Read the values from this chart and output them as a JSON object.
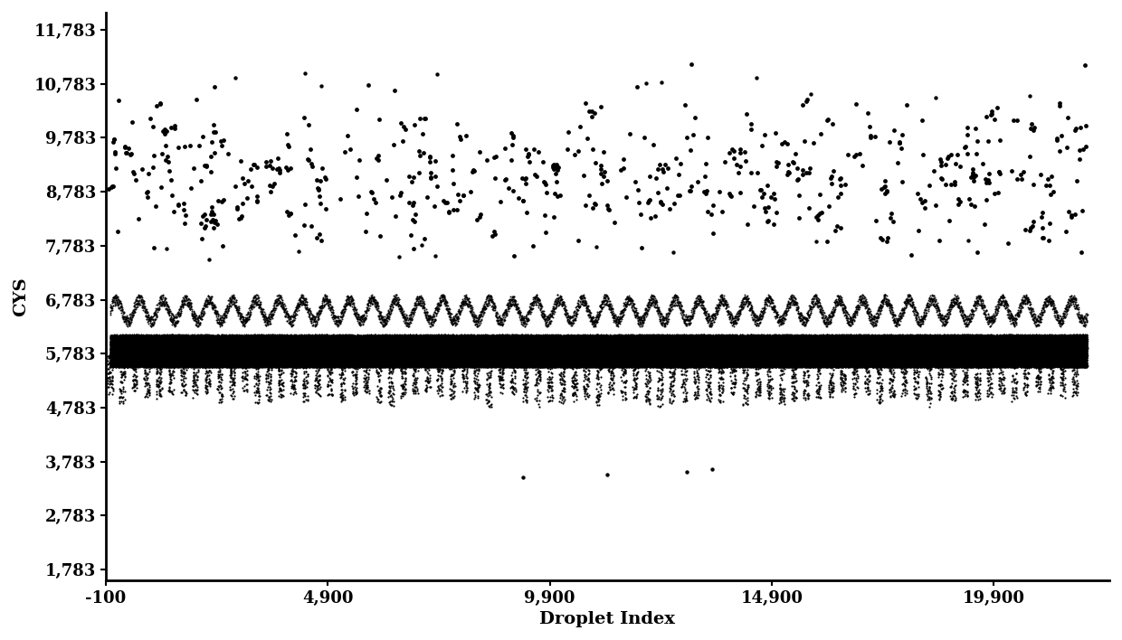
{
  "title": "",
  "xlabel": "Droplet Index",
  "ylabel": "CYS",
  "xlim": [
    -100,
    22500
  ],
  "ylim": [
    1583,
    12100
  ],
  "xticks": [
    -100,
    4900,
    9900,
    14900,
    19900
  ],
  "yticks": [
    1783,
    2783,
    3783,
    4783,
    5783,
    6783,
    7783,
    8783,
    9783,
    10783,
    11783
  ],
  "background_color": "#ffffff",
  "dot_color": "#000000",
  "figsize": [
    12.4,
    7.08
  ],
  "dpi": 100,
  "seed": 42
}
